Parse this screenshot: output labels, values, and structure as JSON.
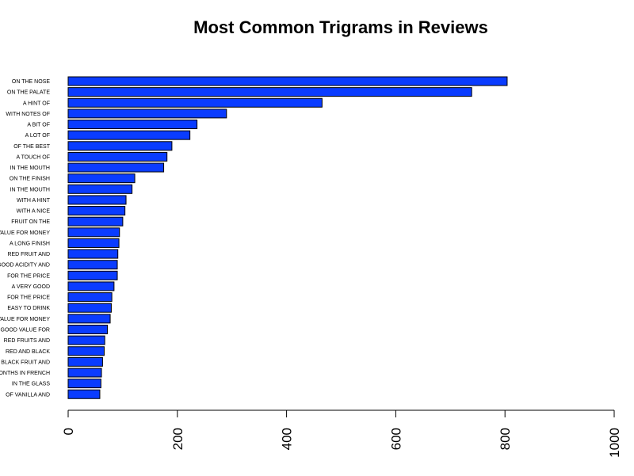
{
  "chart_data": {
    "type": "bar",
    "orientation": "horizontal",
    "title": "Most Common Trigrams in Reviews",
    "xlabel": "",
    "ylabel": "",
    "xlim": [
      0,
      1000
    ],
    "ticks": [
      "0",
      "200",
      "400",
      "600",
      "800",
      "1000"
    ],
    "tick_values": [
      0,
      200,
      400,
      600,
      800,
      1000
    ],
    "grid": false,
    "bar_color": "#0a3cff",
    "categories": [
      "ON THE NOSE",
      "ON THE PALATE",
      "A HINT OF",
      "WITH NOTES OF",
      "A BIT OF",
      "A LOT OF",
      "OF THE BEST",
      "A TOUCH OF",
      "IN THE MOUTH",
      "ON THE FINISH",
      "IN THE MOUTH",
      "WITH A HINT",
      "WITH A NICE",
      "FRUIT ON THE",
      "VALUE FOR MONEY",
      "A LONG FINISH",
      "RED FRUIT AND",
      "GOOD ACIDITY AND",
      "FOR THE PRICE",
      "A VERY GOOD",
      "FOR THE PRICE",
      "EASY TO DRINK",
      "VALUE FOR MONEY",
      "GOOD VALUE FOR",
      "RED FRUITS AND",
      "RED AND BLACK",
      "BLACK FRUIT AND",
      "MONTHS IN FRENCH",
      "IN THE GLASS",
      "OF VANILLA AND"
    ],
    "values": [
      804,
      739,
      465,
      290,
      236,
      223,
      190,
      181,
      175,
      122,
      117,
      106,
      104,
      100,
      94,
      93,
      91,
      90,
      90,
      84,
      80,
      79,
      77,
      72,
      67,
      66,
      63,
      61,
      60,
      58
    ]
  }
}
